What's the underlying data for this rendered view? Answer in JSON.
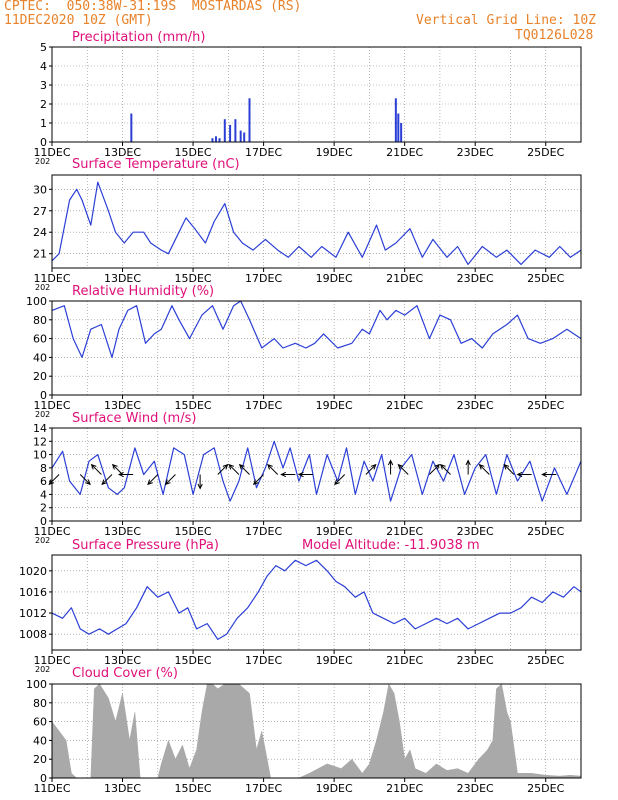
{
  "header": {
    "line1": "CPTEC:  050:38W-31:19S  MOSTARDAS (RS)",
    "line2": "11DEC2020 10Z (GMT)",
    "grid_note": "Vertical Grid Line: 10Z",
    "model_code": "TQ0126L028",
    "colors": {
      "header": "#e8822a",
      "panel_title": "#e0107a",
      "line": "#2b3fd6",
      "bar": "#2b3fd6",
      "cloud": "#a9a9a9"
    }
  },
  "x_axis": {
    "ticks": [
      "11DEC",
      "13DEC",
      "15DEC",
      "17DEC",
      "19DEC",
      "21DEC",
      "23DEC",
      "25DEC"
    ],
    "year_fragment": "202",
    "days_span": 15
  },
  "chart_data": [
    {
      "id": "precip",
      "type": "bar",
      "title": "Precipitation (mm/h)",
      "ylim": [
        0,
        5
      ],
      "yticks": [
        0,
        1,
        2,
        3,
        4,
        5
      ],
      "series": [
        {
          "x_days": [
            2.25,
            4.55,
            4.65,
            4.75,
            4.9,
            5.05,
            5.2,
            5.35,
            5.45,
            5.6,
            9.75,
            9.82,
            9.9
          ],
          "values": [
            1.5,
            0.2,
            0.3,
            0.2,
            1.2,
            0.9,
            1.2,
            0.6,
            0.5,
            2.3,
            2.3,
            1.5,
            1.0
          ]
        }
      ]
    },
    {
      "id": "temp",
      "type": "line",
      "title": "Surface Temperature (nC)",
      "ylim": [
        19,
        32
      ],
      "yticks": [
        21,
        24,
        27,
        30
      ],
      "series": [
        {
          "x_days": [
            0,
            0.2,
            0.5,
            0.7,
            0.85,
            1.1,
            1.3,
            1.6,
            1.8,
            2.05,
            2.3,
            2.6,
            2.8,
            3.1,
            3.3,
            3.55,
            3.8,
            4.05,
            4.35,
            4.6,
            4.9,
            5.15,
            5.4,
            5.7,
            6.05,
            6.4,
            6.7,
            7.0,
            7.35,
            7.65,
            8.05,
            8.4,
            8.8,
            9.2,
            9.45,
            9.75,
            10.15,
            10.5,
            10.8,
            11.2,
            11.5,
            11.8,
            12.2,
            12.6,
            12.9,
            13.3,
            13.7,
            14.1,
            14.4,
            14.7,
            15.0
          ],
          "values": [
            20,
            21,
            28.5,
            30,
            28.5,
            25,
            31,
            27,
            24,
            22.5,
            24,
            24,
            22.5,
            21.5,
            21,
            23.5,
            26,
            24.5,
            22.5,
            25.5,
            28,
            24,
            22.5,
            21.5,
            23,
            21.5,
            20.5,
            22,
            20.5,
            22,
            20.5,
            24,
            20.5,
            25,
            21.5,
            22.5,
            24.5,
            20.5,
            23,
            20.5,
            22,
            19.5,
            22,
            20.5,
            21.5,
            19.5,
            21.5,
            20.5,
            22,
            20.5,
            21.5
          ]
        }
      ]
    },
    {
      "id": "rh",
      "type": "line",
      "title": "Relative Humidity (%)",
      "ylim": [
        0,
        100
      ],
      "yticks": [
        0,
        20,
        40,
        60,
        80,
        100
      ],
      "series": [
        {
          "x_days": [
            0,
            0.35,
            0.6,
            0.85,
            1.1,
            1.4,
            1.7,
            1.9,
            2.15,
            2.4,
            2.65,
            2.9,
            3.1,
            3.4,
            3.6,
            3.9,
            4.25,
            4.55,
            4.85,
            5.15,
            5.35,
            5.6,
            5.95,
            6.3,
            6.55,
            6.9,
            7.2,
            7.45,
            7.7,
            8.1,
            8.5,
            8.8,
            9.0,
            9.3,
            9.5,
            9.75,
            10.0,
            10.35,
            10.7,
            11.0,
            11.3,
            11.6,
            11.9,
            12.2,
            12.5,
            12.9,
            13.2,
            13.5,
            13.85,
            14.2,
            14.6,
            15.0
          ],
          "values": [
            90,
            95,
            60,
            40,
            70,
            75,
            40,
            70,
            90,
            95,
            55,
            65,
            70,
            95,
            80,
            60,
            85,
            95,
            70,
            95,
            100,
            80,
            50,
            60,
            50,
            55,
            50,
            55,
            65,
            50,
            55,
            70,
            65,
            90,
            80,
            90,
            85,
            95,
            60,
            85,
            80,
            55,
            60,
            50,
            65,
            75,
            85,
            60,
            55,
            60,
            70,
            60
          ]
        }
      ]
    },
    {
      "id": "wind",
      "type": "line",
      "title": "Surface Wind (m/s)",
      "ylim": [
        0,
        14
      ],
      "yticks": [
        0,
        2,
        4,
        6,
        8,
        10,
        12,
        14
      ],
      "series": [
        {
          "x_days": [
            0,
            0.3,
            0.5,
            0.8,
            1.05,
            1.3,
            1.6,
            1.85,
            2.05,
            2.35,
            2.6,
            2.9,
            3.15,
            3.45,
            3.75,
            4.0,
            4.3,
            4.6,
            4.85,
            5.05,
            5.3,
            5.55,
            5.8,
            6.05,
            6.3,
            6.55,
            6.75,
            7.0,
            7.3,
            7.5,
            7.8,
            8.1,
            8.35,
            8.6,
            8.85,
            9.1,
            9.35,
            9.6,
            9.9,
            10.2,
            10.5,
            10.8,
            11.1,
            11.4,
            11.7,
            12.0,
            12.3,
            12.6,
            12.9,
            13.2,
            13.55,
            13.9,
            14.25,
            14.6,
            15.0
          ],
          "values": [
            8,
            10.5,
            6,
            4,
            9,
            10,
            5,
            4,
            5,
            11,
            7,
            9,
            4,
            11,
            10,
            4,
            10,
            11,
            6,
            3,
            6,
            11,
            5,
            8,
            12,
            8,
            11,
            6,
            10,
            4,
            10,
            6,
            11,
            4,
            9,
            6,
            10,
            3,
            8,
            10,
            4,
            9,
            6,
            10,
            4,
            8,
            10,
            4,
            10,
            6,
            9,
            3,
            8,
            4,
            9
          ]
        }
      ]
    },
    {
      "id": "pres",
      "type": "line",
      "title": "Surface Pressure (hPa)",
      "annotation": "Model Altitude: -11.9038 m",
      "ylim": [
        1005,
        1023
      ],
      "yticks": [
        1008,
        1012,
        1016,
        1020
      ],
      "series": [
        {
          "x_days": [
            0,
            0.3,
            0.55,
            0.8,
            1.05,
            1.35,
            1.6,
            1.85,
            2.1,
            2.4,
            2.7,
            3.0,
            3.3,
            3.6,
            3.85,
            4.1,
            4.4,
            4.7,
            4.95,
            5.25,
            5.55,
            5.85,
            6.1,
            6.35,
            6.6,
            6.9,
            7.2,
            7.5,
            7.8,
            8.05,
            8.3,
            8.6,
            8.85,
            9.1,
            9.4,
            9.7,
            10.0,
            10.3,
            10.6,
            10.9,
            11.2,
            11.5,
            11.8,
            12.1,
            12.4,
            12.7,
            13.0,
            13.3,
            13.6,
            13.9,
            14.2,
            14.5,
            14.8,
            15.0
          ],
          "values": [
            1012,
            1011,
            1013,
            1009,
            1008,
            1009,
            1008,
            1009,
            1010,
            1013,
            1017,
            1015,
            1016,
            1012,
            1013,
            1009,
            1010,
            1007,
            1008,
            1011,
            1013,
            1016,
            1019,
            1021,
            1020,
            1022,
            1021,
            1022,
            1020,
            1018,
            1017,
            1015,
            1016,
            1012,
            1011,
            1010,
            1011,
            1009,
            1010,
            1011,
            1010,
            1011,
            1009,
            1010,
            1011,
            1012,
            1012,
            1013,
            1015,
            1014,
            1016,
            1015,
            1017,
            1016
          ]
        }
      ]
    },
    {
      "id": "cloud",
      "type": "area",
      "title": "Cloud Cover (%)",
      "ylim": [
        0,
        100
      ],
      "yticks": [
        0,
        20,
        40,
        60,
        80,
        100
      ],
      "series": [
        {
          "x_days": [
            0,
            0.2,
            0.4,
            0.55,
            0.7,
            1.1,
            1.2,
            1.35,
            1.6,
            1.8,
            2.0,
            2.2,
            2.35,
            2.5,
            3.0,
            3.1,
            3.3,
            3.5,
            3.7,
            3.9,
            4.1,
            4.25,
            4.4,
            4.55,
            4.7,
            4.9,
            5.1,
            5.3,
            5.6,
            5.8,
            5.95,
            6.2,
            6.6,
            7.0,
            7.3,
            7.8,
            8.2,
            8.5,
            8.8,
            9.0,
            9.2,
            9.4,
            9.55,
            9.7,
            9.85,
            10.0,
            10.15,
            10.3,
            10.6,
            10.9,
            11.2,
            11.5,
            11.8,
            12.1,
            12.35,
            12.5,
            12.6,
            12.75,
            12.9,
            13.0,
            13.2,
            13.6,
            14.0,
            14.4,
            14.7,
            15.0
          ],
          "values": [
            60,
            50,
            40,
            5,
            0,
            0,
            95,
            100,
            85,
            60,
            90,
            40,
            70,
            0,
            0,
            15,
            40,
            20,
            35,
            10,
            30,
            70,
            100,
            100,
            95,
            100,
            100,
            100,
            90,
            30,
            50,
            0,
            0,
            0,
            5,
            15,
            10,
            20,
            5,
            15,
            40,
            70,
            100,
            90,
            60,
            20,
            30,
            10,
            5,
            15,
            8,
            10,
            5,
            20,
            30,
            40,
            95,
            100,
            70,
            60,
            5,
            5,
            3,
            2,
            3,
            2
          ]
        }
      ]
    }
  ],
  "wind_arrows": [
    {
      "x_day": 0.2,
      "dir": "to-SW"
    },
    {
      "x_day": 0.8,
      "dir": "to-SE"
    },
    {
      "x_day": 1.4,
      "dir": "to-NW"
    },
    {
      "x_day": 1.7,
      "dir": "to-SW"
    },
    {
      "x_day": 2.0,
      "dir": "to-NW"
    },
    {
      "x_day": 2.3,
      "dir": "to-W"
    },
    {
      "x_day": 3.0,
      "dir": "to-SW"
    },
    {
      "x_day": 3.5,
      "dir": "to-SW"
    },
    {
      "x_day": 4.2,
      "dir": "to-S"
    },
    {
      "x_day": 4.7,
      "dir": "to-NE"
    },
    {
      "x_day": 5.3,
      "dir": "to-NW"
    },
    {
      "x_day": 5.6,
      "dir": "to-NW"
    },
    {
      "x_day": 6.0,
      "dir": "to-SW"
    },
    {
      "x_day": 6.4,
      "dir": "to-NW"
    },
    {
      "x_day": 6.9,
      "dir": "to-W"
    },
    {
      "x_day": 7.4,
      "dir": "to-W"
    },
    {
      "x_day": 8.3,
      "dir": "to-SW"
    },
    {
      "x_day": 8.9,
      "dir": "to-NE"
    },
    {
      "x_day": 9.6,
      "dir": "to-N"
    },
    {
      "x_day": 10.1,
      "dir": "to-NW"
    },
    {
      "x_day": 10.7,
      "dir": "to-NE"
    },
    {
      "x_day": 11.3,
      "dir": "to-NW"
    },
    {
      "x_day": 11.8,
      "dir": "to-N"
    },
    {
      "x_day": 12.4,
      "dir": "to-NW"
    },
    {
      "x_day": 13.1,
      "dir": "to-NW"
    },
    {
      "x_day": 13.6,
      "dir": "to-W"
    },
    {
      "x_day": 14.3,
      "dir": "to-W"
    }
  ]
}
